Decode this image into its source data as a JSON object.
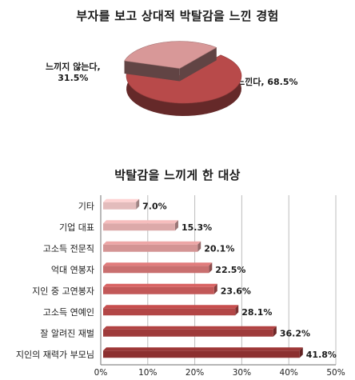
{
  "chart_data": [
    {
      "type": "pie",
      "title": "부자를 보고 상대적 박탈감을 느낀 경험",
      "slices": [
        {
          "label": "느낀다",
          "value": 68.5,
          "text": "느낀다, 68.5%",
          "color": "#b84a4a"
        },
        {
          "label": "느끼지 않는다",
          "value": 31.5,
          "text": "느끼지 않는다,\n31.5%",
          "color": "#d89898"
        }
      ]
    },
    {
      "type": "bar",
      "orientation": "horizontal",
      "title": "박탈감을 느끼게 한 대상",
      "categories": [
        "기타",
        "기업 대표",
        "고소득 전문직",
        "억대 연봉자",
        "지인 중 고연봉자",
        "고소득 연예인",
        "잘 알려진 재벌",
        "지인의 재력가 부모님"
      ],
      "values": [
        7.0,
        15.3,
        20.1,
        22.5,
        23.6,
        28.1,
        36.2,
        41.8
      ],
      "value_labels": [
        "7.0%",
        "15.3%",
        "20.1%",
        "22.5%",
        "23.6%",
        "28.1%",
        "36.2%",
        "41.8%"
      ],
      "colors": [
        "#e3bcbc",
        "#dca9a9",
        "#d49494",
        "#c96f6f",
        "#c25858",
        "#b24646",
        "#9e3b3b",
        "#8c3030"
      ],
      "xlim": [
        0,
        50
      ],
      "xticks": [
        "0%",
        "10%",
        "20%",
        "30%",
        "40%",
        "50%"
      ],
      "grid": true
    }
  ]
}
